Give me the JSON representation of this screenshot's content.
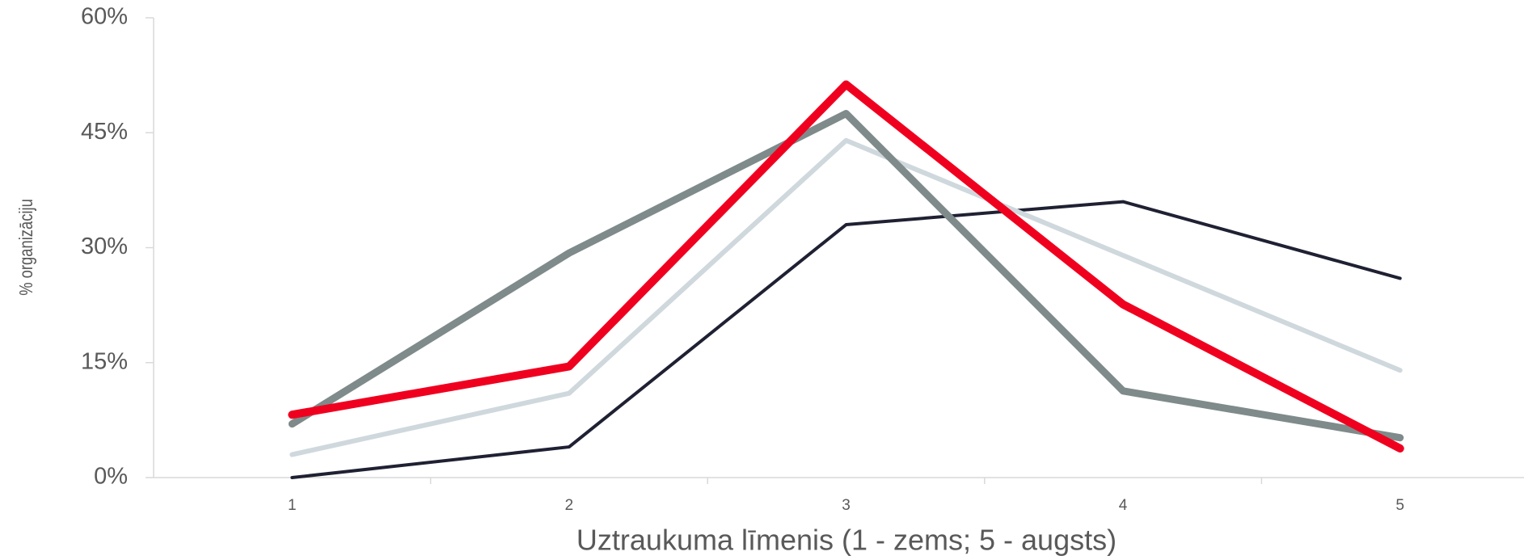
{
  "chart_data": {
    "type": "line",
    "xlabel": "Uztraukuma līmenis (1 - zems; 5 - augsts)",
    "ylabel": "% organizāciju",
    "categories": [
      "1",
      "2",
      "3",
      "4",
      "5"
    ],
    "series": [
      {
        "color": "#1f2133",
        "values": [
          0,
          4,
          33,
          36,
          26
        ]
      },
      {
        "color": "#cfd8dd",
        "values": [
          3,
          11,
          44,
          29,
          14
        ]
      },
      {
        "color": "#7f8a8a",
        "values": [
          7,
          29.3,
          47.5,
          11.3,
          5.2
        ]
      },
      {
        "color": "#f0001f",
        "values": [
          8.2,
          14.5,
          51.3,
          22.6,
          3.8
        ]
      }
    ],
    "ylim": [
      0,
      60
    ],
    "yticks": [
      {
        "value": 0,
        "label": "0%"
      },
      {
        "value": 15,
        "label": "15%"
      },
      {
        "value": 30,
        "label": "30%"
      },
      {
        "value": 45,
        "label": "45%"
      },
      {
        "value": 60,
        "label": "60%"
      }
    ],
    "grid": false
  }
}
